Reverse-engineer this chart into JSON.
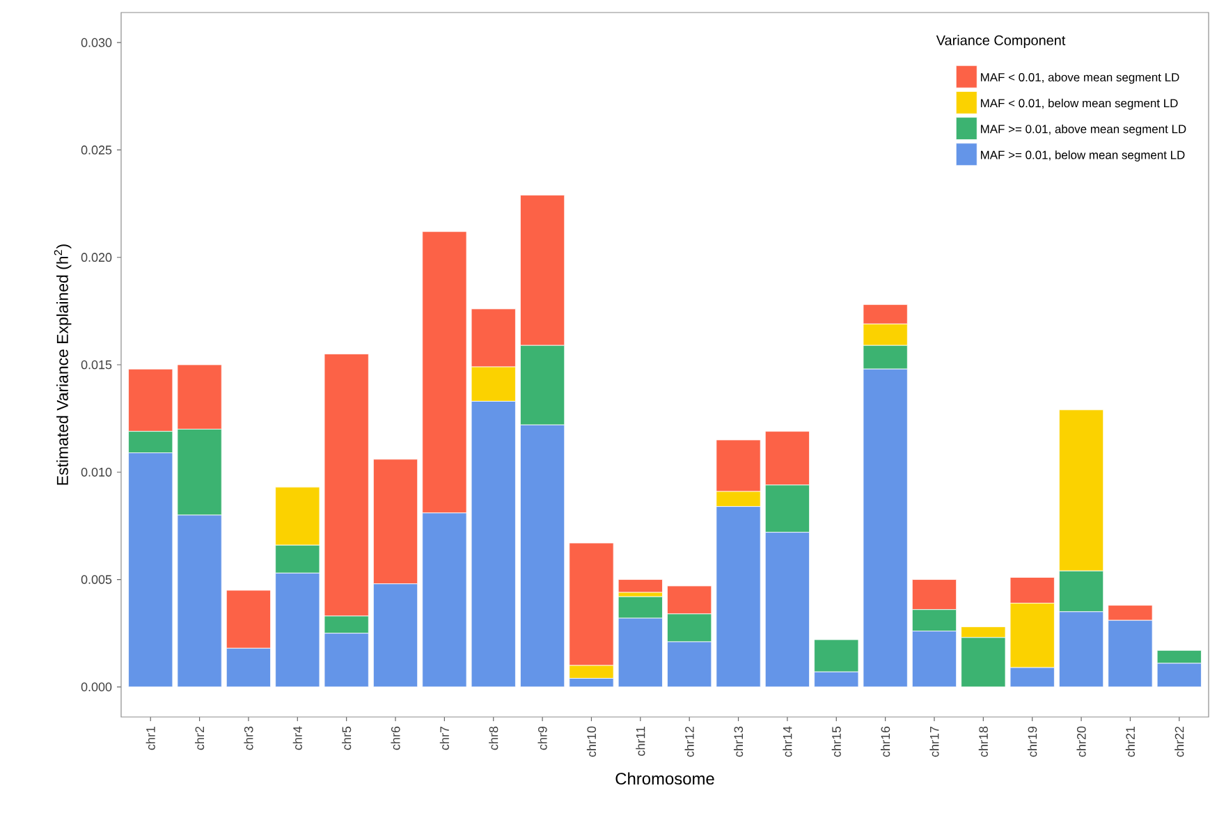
{
  "chart_data": {
    "type": "bar",
    "stacked": true,
    "xlabel": "Chromosome",
    "ylabel": "Estimated Variance Explained (h$^{2}$)",
    "legend_title": "Variance Component",
    "legend": "top right",
    "grid": false,
    "categories": [
      "chr1",
      "chr2",
      "chr3",
      "chr4",
      "chr5",
      "chr6",
      "chr7",
      "chr8",
      "chr9",
      "chr10",
      "chr11",
      "chr12",
      "chr13",
      "chr14",
      "chr15",
      "chr16",
      "chr17",
      "chr18",
      "chr19",
      "chr20",
      "chr21",
      "chr22"
    ],
    "ylim": [
      -0.0014,
      0.0314
    ],
    "yticks": [
      {
        "value": 0,
        "label": "0.000"
      },
      {
        "value": 0.005,
        "label": "0.005"
      },
      {
        "value": 0.01,
        "label": "0.010"
      },
      {
        "value": 0.015,
        "label": "0.015"
      },
      {
        "value": 0.02,
        "label": "0.020"
      },
      {
        "value": 0.025,
        "label": "0.025"
      },
      {
        "value": 0.03,
        "label": "0.030"
      }
    ],
    "series": [
      {
        "name": "MAF >= 0.01, below mean segment LD",
        "color": "#6495e8",
        "values": [
          0.0109,
          0.008,
          0.0018,
          0.0053,
          0.0025,
          0.0048,
          0.0081,
          0.0133,
          0.0122,
          0.0004,
          0.0032,
          0.0021,
          0.0084,
          0.0072,
          0.0007,
          0.0148,
          0.0026,
          0,
          0.0009,
          0.0035,
          0.0031,
          0.0011
        ]
      },
      {
        "name": "MAF >= 0.01, above mean segment LD",
        "color": "#3cb371",
        "values": [
          0.001,
          0.004,
          0,
          0.0013,
          0.0008,
          0,
          0,
          0,
          0.0037,
          0,
          0.001,
          0.0013,
          0,
          0.0022,
          0.0015,
          0.0011,
          0.001,
          0.0023,
          0,
          0.0019,
          0,
          0.0006
        ]
      },
      {
        "name": "MAF < 0.01, below mean segment LD",
        "color": "#fbd200",
        "values": [
          0,
          0,
          0,
          0.0027,
          0,
          0,
          0,
          0.0016,
          0,
          0.0006,
          0.0002,
          0,
          0.0007,
          0,
          0,
          0.001,
          0,
          0.0005,
          0.003,
          0.0075,
          0,
          0
        ]
      },
      {
        "name": "MAF < 0.01, above mean segment LD",
        "color": "#fc6247",
        "values": [
          0.0029,
          0.003,
          0.0027,
          0,
          0.0122,
          0.0058,
          0.0131,
          0.0027,
          0.007,
          0.0057,
          0.0006,
          0.0013,
          0.0024,
          0.0025,
          0,
          0.0009,
          0.0014,
          0,
          0.0012,
          0,
          0.0007,
          0
        ]
      }
    ]
  }
}
